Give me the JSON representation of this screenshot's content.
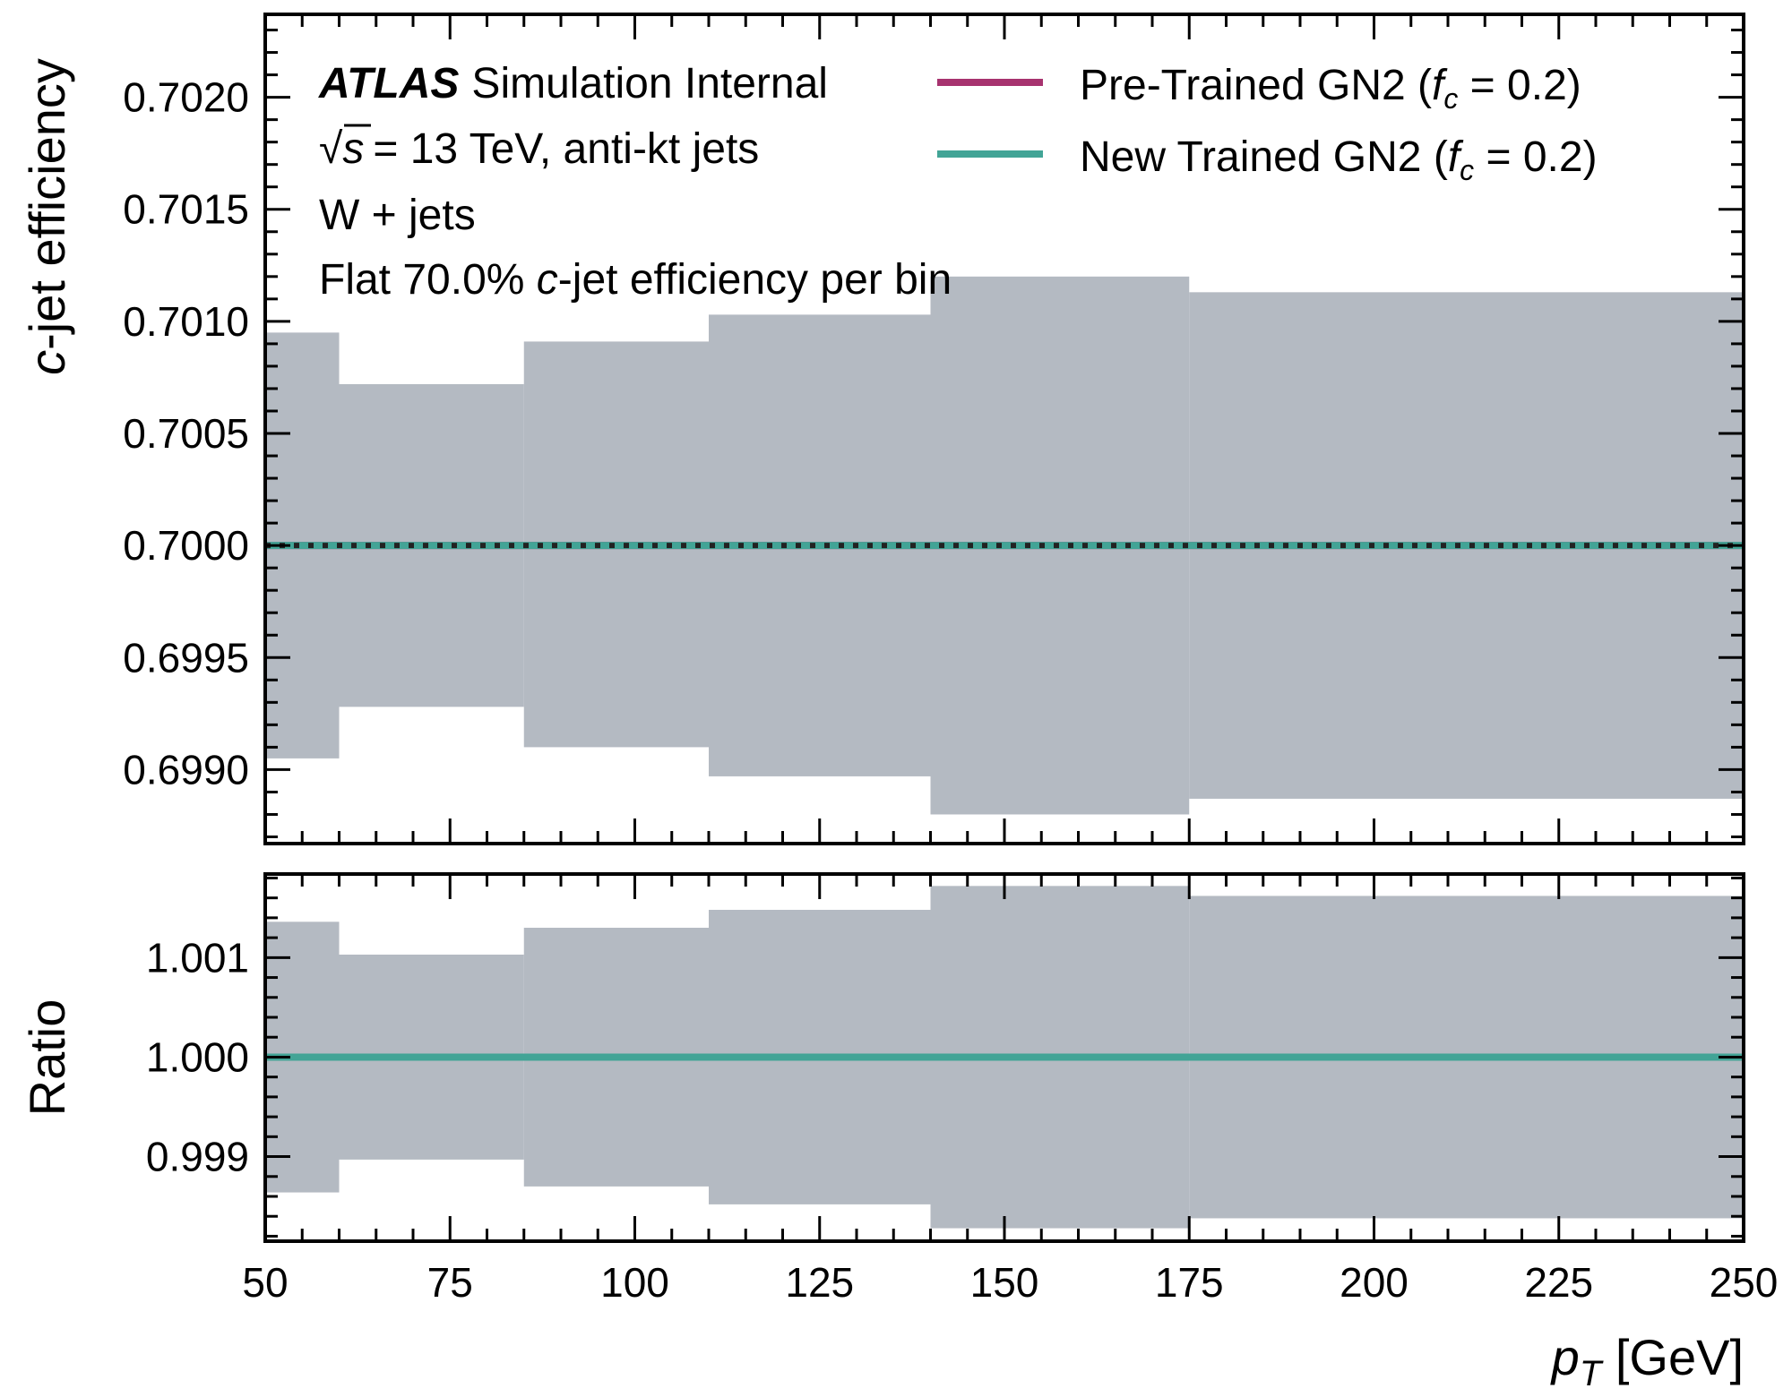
{
  "atlas": {
    "brand": "ATLAS",
    "tag": "Simulation Internal",
    "energy_sqrt": "√s",
    "energy_rest": "= 13 TeV, anti-kt jets",
    "sample": "W + jets",
    "wp_pre": "Flat 70.0% ",
    "wp_c": "c",
    "wp_post": "-jet efficiency per bin"
  },
  "legend": [
    {
      "pre": "Pre-Trained GN2 (",
      "f": "f",
      "sub": "c",
      "post": " = 0.2)",
      "color": "#a7336f"
    },
    {
      "pre": "New Trained GN2 (",
      "f": "f",
      "sub": "c",
      "post": " = 0.2)",
      "color": "#42a496"
    }
  ],
  "chart_data": [
    {
      "type": "line",
      "ylabel_c": "c",
      "ylabel_rest": "-jet efficiency",
      "xlim": [
        50,
        250
      ],
      "ylim": [
        0.69867,
        0.70237
      ],
      "yticks": [
        "0.6990",
        "0.6995",
        "0.7000",
        "0.7005",
        "0.7010",
        "0.7015",
        "0.7020"
      ],
      "yticks_values": [
        0.699,
        0.6995,
        0.7,
        0.7005,
        0.701,
        0.7015,
        0.702
      ],
      "bin_edges": [
        50,
        60,
        85,
        110,
        140,
        175,
        250
      ],
      "band_upper": [
        0.70095,
        0.70072,
        0.70091,
        0.70103,
        0.7012,
        0.70113
      ],
      "band_lower": [
        0.69905,
        0.69928,
        0.6991,
        0.69897,
        0.6988,
        0.69887
      ],
      "band_color": "#b4bac2",
      "series": [
        {
          "values": [
            0.7,
            0.7,
            0.7,
            0.7,
            0.7,
            0.7
          ],
          "color": "#a7336f",
          "style": "solid"
        },
        {
          "values": [
            0.7,
            0.7,
            0.7,
            0.7,
            0.7,
            0.7
          ],
          "color": "#42a496",
          "style": "solid"
        },
        {
          "values": [
            0.7,
            0.7,
            0.7,
            0.7,
            0.7,
            0.7
          ],
          "color": "#222222",
          "style": "dotted"
        }
      ]
    },
    {
      "type": "line",
      "ylabel": "Ratio",
      "xlabel_p": "p",
      "xlabel_sub": "T",
      "xlabel_rest": " [GeV]",
      "xlim": [
        50,
        250
      ],
      "ylim": [
        0.99815,
        1.00184
      ],
      "xticks": [
        "50",
        "75",
        "100",
        "125",
        "150",
        "175",
        "200",
        "225",
        "250"
      ],
      "xticks_values": [
        50,
        75,
        100,
        125,
        150,
        175,
        200,
        225,
        250
      ],
      "yticks": [
        "0.999",
        "1.000",
        "1.001"
      ],
      "yticks_values": [
        0.999,
        1.0,
        1.001
      ],
      "bin_edges": [
        50,
        60,
        85,
        110,
        140,
        175,
        250
      ],
      "band_upper": [
        1.00136,
        1.00103,
        1.0013,
        1.00148,
        1.00172,
        1.00162
      ],
      "band_lower": [
        0.99864,
        0.99897,
        0.9987,
        0.99852,
        0.99828,
        0.99838
      ],
      "band_color": "#b4bac2",
      "series": [
        {
          "values": [
            1.0,
            1.0,
            1.0,
            1.0,
            1.0,
            1.0
          ],
          "color": "#a7336f",
          "style": "solid"
        },
        {
          "values": [
            1.0,
            1.0,
            1.0,
            1.0,
            1.0,
            1.0
          ],
          "color": "#42a496",
          "style": "solid"
        }
      ]
    }
  ]
}
